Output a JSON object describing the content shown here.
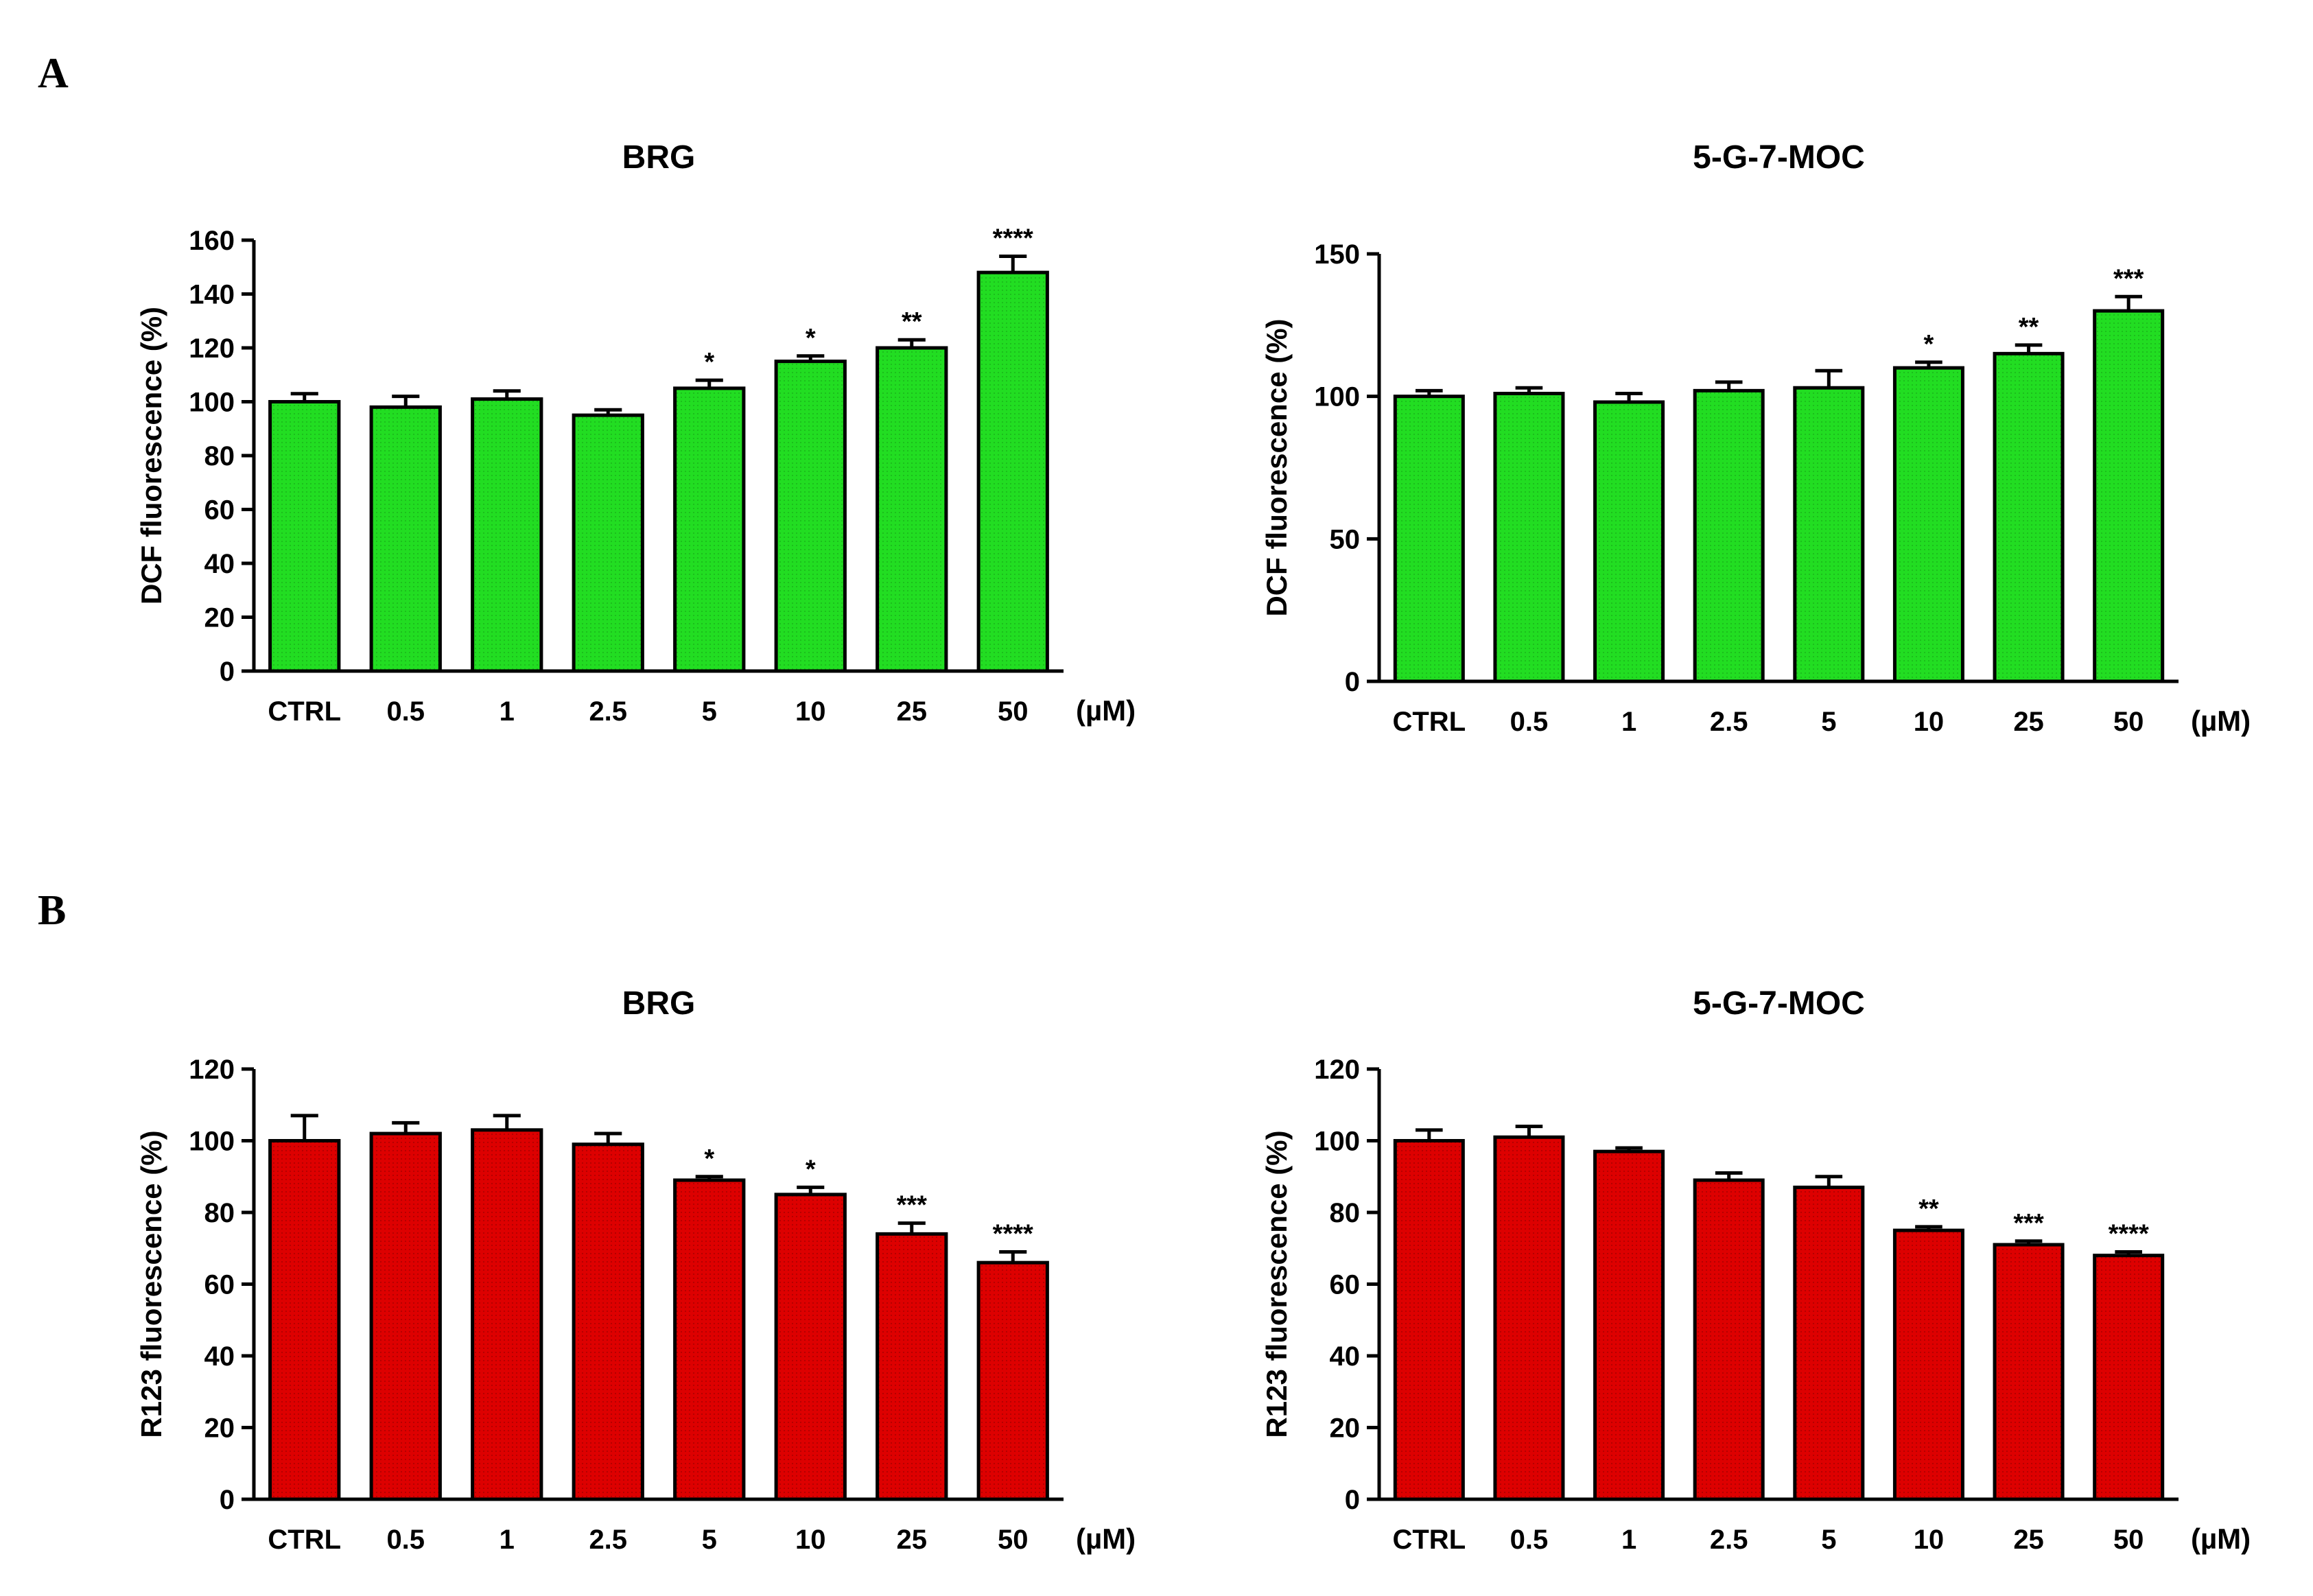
{
  "panel_labels": {
    "A": "A",
    "B": "B"
  },
  "chart_data": [
    {
      "type": "bar",
      "id": "chartA1",
      "title": "BRG",
      "ylabel": "DCF fluorescence (%)",
      "xunit": "(µM)",
      "categories": [
        "CTRL",
        "0.5",
        "1",
        "2.5",
        "5",
        "10",
        "25",
        "50"
      ],
      "values": [
        100,
        98,
        101,
        95,
        105,
        115,
        120,
        148
      ],
      "errors": [
        3,
        4,
        3,
        2,
        3,
        2,
        3,
        6
      ],
      "significance": [
        "",
        "",
        "",
        "",
        "*",
        "*",
        "**",
        "****"
      ],
      "ylim": [
        0,
        160
      ],
      "yticks": [
        0,
        20,
        40,
        60,
        80,
        100,
        120,
        140,
        160
      ],
      "bar_color": "#22dd22"
    },
    {
      "type": "bar",
      "id": "chartA2",
      "title": "5-G-7-MOC",
      "ylabel": "DCF fluorescence (%)",
      "xunit": "(µM)",
      "categories": [
        "CTRL",
        "0.5",
        "1",
        "2.5",
        "5",
        "10",
        "25",
        "50"
      ],
      "values": [
        100,
        101,
        98,
        102,
        103,
        110,
        115,
        130
      ],
      "errors": [
        2,
        2,
        3,
        3,
        6,
        2,
        3,
        5
      ],
      "significance": [
        "",
        "",
        "",
        "",
        "",
        "*",
        "**",
        "***"
      ],
      "ylim": [
        0,
        150
      ],
      "yticks": [
        0,
        50,
        100,
        150
      ],
      "bar_color": "#22dd22"
    },
    {
      "type": "bar",
      "id": "chartB1",
      "title": "BRG",
      "ylabel": "R123 fluorescence (%)",
      "xunit": "(µM)",
      "categories": [
        "CTRL",
        "0.5",
        "1",
        "2.5",
        "5",
        "10",
        "25",
        "50"
      ],
      "values": [
        100,
        102,
        103,
        99,
        89,
        85,
        74,
        66
      ],
      "errors": [
        7,
        3,
        4,
        3,
        1,
        2,
        3,
        3
      ],
      "significance": [
        "",
        "",
        "",
        "",
        "*",
        "*",
        "***",
        "****"
      ],
      "ylim": [
        0,
        120
      ],
      "yticks": [
        0,
        20,
        40,
        60,
        80,
        100,
        120
      ],
      "bar_color": "#dd0000"
    },
    {
      "type": "bar",
      "id": "chartB2",
      "title": "5-G-7-MOC",
      "ylabel": "R123 fluorescence (%)",
      "xunit": "(µM)",
      "categories": [
        "CTRL",
        "0.5",
        "1",
        "2.5",
        "5",
        "10",
        "25",
        "50"
      ],
      "values": [
        100,
        101,
        97,
        89,
        87,
        75,
        71,
        68
      ],
      "errors": [
        3,
        3,
        1,
        2,
        3,
        1,
        1,
        1
      ],
      "significance": [
        "",
        "",
        "",
        "",
        "",
        "**",
        "***",
        "****"
      ],
      "ylim": [
        0,
        120
      ],
      "yticks": [
        0,
        20,
        40,
        60,
        80,
        100,
        120
      ],
      "bar_color": "#dd0000"
    }
  ]
}
